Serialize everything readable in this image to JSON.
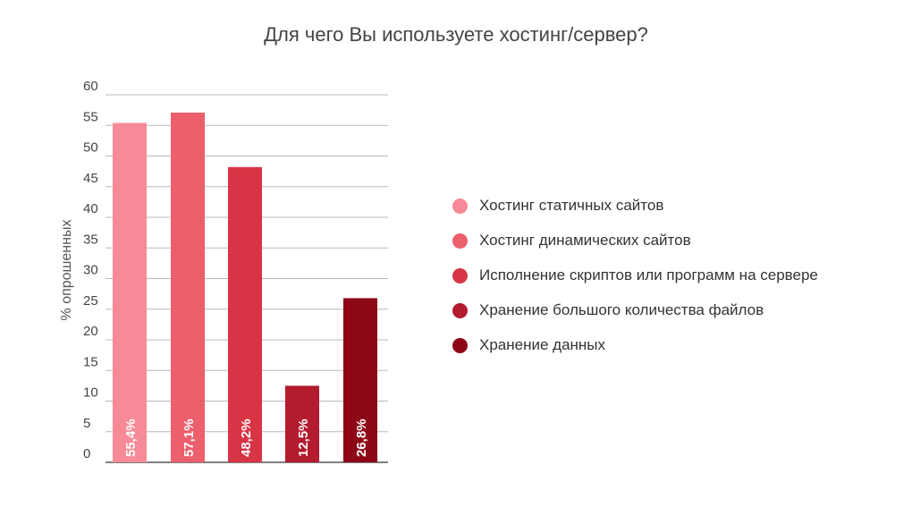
{
  "chart_data": {
    "type": "bar",
    "title": "Для чего Вы используете хостинг/сервер?",
    "ylabel": "% опрошенных",
    "xlabel": "",
    "ylim": [
      0,
      60
    ],
    "yticks": [
      0,
      5,
      10,
      15,
      20,
      25,
      30,
      35,
      40,
      45,
      50,
      55,
      60
    ],
    "grid": true,
    "legend_position": "right",
    "categories": [
      "Хостинг статичных сайтов",
      "Хостинг динамических сайтов",
      "Исполнение скриптов или программ на сервере",
      "Хранение большого количества файлов",
      "Хранение данных"
    ],
    "values": [
      55.4,
      57.1,
      48.2,
      12.5,
      26.8
    ],
    "data_labels": [
      "55,4%",
      "57,1%",
      "48,2%",
      "12,5%",
      "26,8%"
    ],
    "colors": [
      "#f78a97",
      "#ec5f6c",
      "#d73545",
      "#b31b2e",
      "#8e0716"
    ]
  }
}
